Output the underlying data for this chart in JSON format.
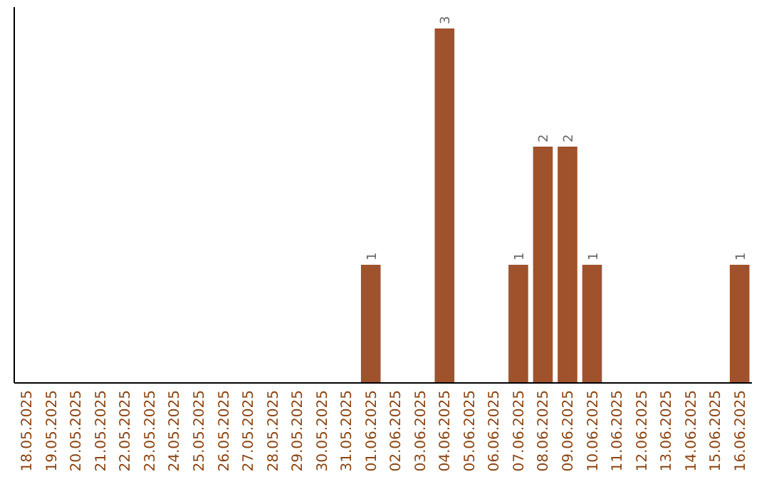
{
  "chart_data": {
    "type": "bar",
    "categories": [
      "18.05.2025",
      "19.05.2025",
      "20.05.2025",
      "21.05.2025",
      "22.05.2025",
      "23.05.2025",
      "24.05.2025",
      "25.05.2025",
      "26.05.2025",
      "27.05.2025",
      "28.05.2025",
      "29.05.2025",
      "30.05.2025",
      "31.05.2025",
      "01.06.2025",
      "02.06.2025",
      "03.06.2025",
      "04.06.2025",
      "05.06.2025",
      "06.06.2025",
      "07.06.2025",
      "08.06.2025",
      "09.06.2025",
      "10.06.2025",
      "11.06.2025",
      "12.06.2025",
      "13.06.2025",
      "14.06.2025",
      "15.06.2025",
      "16.06.2025"
    ],
    "values": [
      null,
      null,
      null,
      null,
      null,
      null,
      null,
      null,
      null,
      null,
      null,
      null,
      null,
      null,
      1,
      null,
      null,
      3,
      null,
      null,
      1,
      2,
      2,
      1,
      null,
      null,
      null,
      null,
      null,
      1
    ],
    "data_labels": true,
    "color": "#a0522d",
    "tick_labels": "x"
  }
}
